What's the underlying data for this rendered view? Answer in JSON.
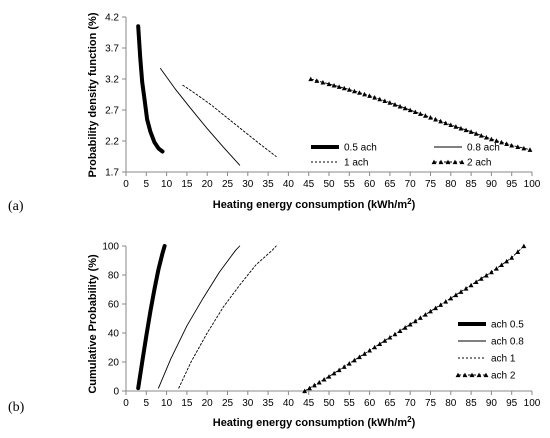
{
  "chart_data": [
    {
      "panel_label": "(a)",
      "type": "line",
      "xlabel": "Heating energy consumption  (kWh/m",
      "xlabel_sup": "2",
      "xlabel_end": ")",
      "ylabel": "Probability density function (%)",
      "xlim": [
        0,
        100
      ],
      "ylim": [
        1.7,
        4.2
      ],
      "xticks": [
        0,
        5,
        10,
        15,
        20,
        25,
        30,
        35,
        40,
        45,
        50,
        55,
        60,
        65,
        70,
        75,
        80,
        85,
        90,
        95,
        100
      ],
      "yticks": [
        1.7,
        2.2,
        2.7,
        3.2,
        3.7,
        4.2
      ],
      "ytick_labels": [
        "1.7",
        "2.2",
        "2.7",
        "3.2",
        "3.7",
        "4.2"
      ],
      "legend": {
        "placement": "bottom-right",
        "columns": 2
      },
      "series": [
        {
          "name": "0.5 ach",
          "style": "thick",
          "x": [
            3.0,
            3.5,
            4.0,
            4.6,
            5.2,
            6.0,
            7.0,
            8.0,
            9.0
          ],
          "y": [
            4.05,
            3.55,
            3.15,
            2.85,
            2.55,
            2.35,
            2.18,
            2.08,
            2.03
          ]
        },
        {
          "name": "0.8 ach",
          "style": "thin",
          "x": [
            8.5,
            12,
            16,
            20,
            24,
            28
          ],
          "y": [
            3.37,
            3.05,
            2.72,
            2.4,
            2.1,
            1.81
          ]
        },
        {
          "name": "1 ach",
          "style": "dashed",
          "x": [
            14,
            17,
            21,
            25,
            29,
            33,
            37
          ],
          "y": [
            3.1,
            2.97,
            2.78,
            2.57,
            2.36,
            2.15,
            1.95
          ]
        },
        {
          "name": "2 ach",
          "style": "triangles",
          "x": [
            45.5,
            50,
            55,
            60,
            65,
            70,
            75,
            80,
            85,
            90,
            95,
            99.5
          ],
          "y": [
            3.2,
            3.12,
            3.03,
            2.93,
            2.82,
            2.7,
            2.58,
            2.46,
            2.35,
            2.23,
            2.13,
            2.06
          ]
        }
      ]
    },
    {
      "panel_label": "(b)",
      "type": "line",
      "xlabel": "Heating energy consumption  (kWh/m",
      "xlabel_sup": "2",
      "xlabel_end": ")",
      "ylabel": "Cumulative Probability (%)",
      "xlim": [
        0,
        100
      ],
      "ylim": [
        0,
        100
      ],
      "xticks": [
        0,
        5,
        10,
        15,
        20,
        25,
        30,
        35,
        40,
        45,
        50,
        55,
        60,
        65,
        70,
        75,
        80,
        85,
        90,
        95,
        100
      ],
      "yticks": [
        0,
        20,
        40,
        60,
        80,
        100
      ],
      "ytick_labels": [
        "0",
        "20",
        "40",
        "60",
        "80",
        "100"
      ],
      "legend": {
        "placement": "bottom-right",
        "columns": 1
      },
      "series": [
        {
          "name": "ach 0.5",
          "style": "thick",
          "x": [
            3,
            4,
            5,
            6,
            7,
            8,
            9,
            9.5
          ],
          "y": [
            2,
            20,
            38,
            55,
            70,
            84,
            95,
            100
          ]
        },
        {
          "name": "ach 0.8",
          "style": "thin",
          "x": [
            8,
            11,
            15,
            19,
            23,
            27,
            28
          ],
          "y": [
            2,
            22,
            45,
            64,
            82,
            97,
            100
          ]
        },
        {
          "name": "ach 1",
          "style": "dashed",
          "x": [
            13,
            16,
            20,
            24,
            28,
            32,
            36,
            37
          ],
          "y": [
            2,
            20,
            40,
            58,
            73,
            87,
            97,
            100
          ]
        },
        {
          "name": "ach 2",
          "style": "triangles",
          "x": [
            44,
            50,
            55,
            60,
            65,
            70,
            75,
            80,
            85,
            90,
            95,
            98
          ],
          "y": [
            0,
            10,
            19,
            28,
            37,
            46,
            55,
            64,
            73,
            82,
            92,
            100
          ]
        }
      ]
    }
  ]
}
